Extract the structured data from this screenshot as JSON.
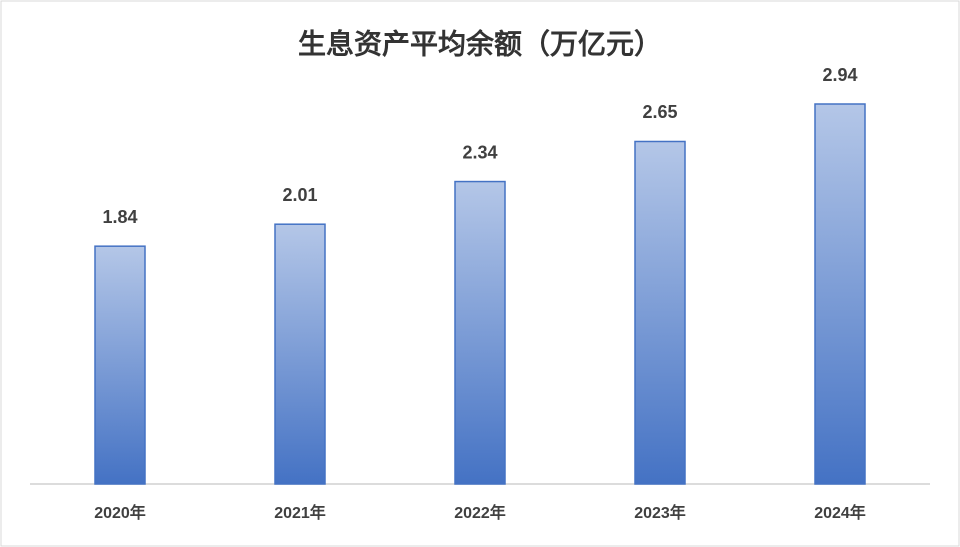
{
  "chart_data": {
    "type": "bar",
    "title": "生息资产平均余额（万亿元）",
    "categories": [
      "2020年",
      "2021年",
      "2022年",
      "2023年",
      "2024年"
    ],
    "values": [
      1.84,
      2.01,
      2.34,
      2.65,
      2.94
    ],
    "color": "#4472c4"
  }
}
